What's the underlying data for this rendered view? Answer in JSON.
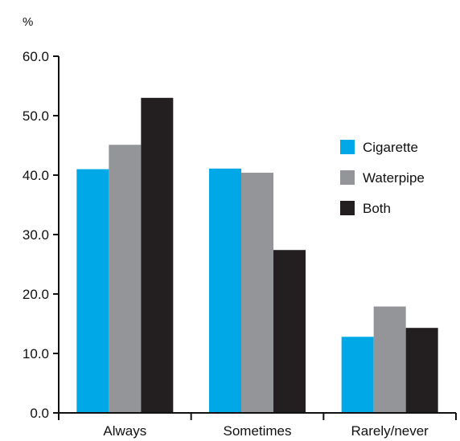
{
  "chart_data": {
    "type": "bar",
    "title": "",
    "xlabel": "",
    "ylabel": "%",
    "ylim": [
      0,
      60
    ],
    "yticks": [
      "0.0",
      "10.0",
      "20.0",
      "30.0",
      "40.0",
      "50.0",
      "60.0"
    ],
    "grid": false,
    "legend_position": "right",
    "categories": [
      "Always",
      "Sometimes",
      "Rarely/never"
    ],
    "series": [
      {
        "name": "Cigarette",
        "color": "#00a8e8",
        "values": [
          41.0,
          41.1,
          12.8
        ]
      },
      {
        "name": "Waterpipe",
        "color": "#939598",
        "values": [
          45.1,
          40.4,
          17.9
        ]
      },
      {
        "name": "Both",
        "color": "#231f20",
        "values": [
          53.0,
          27.4,
          14.3
        ]
      }
    ]
  }
}
